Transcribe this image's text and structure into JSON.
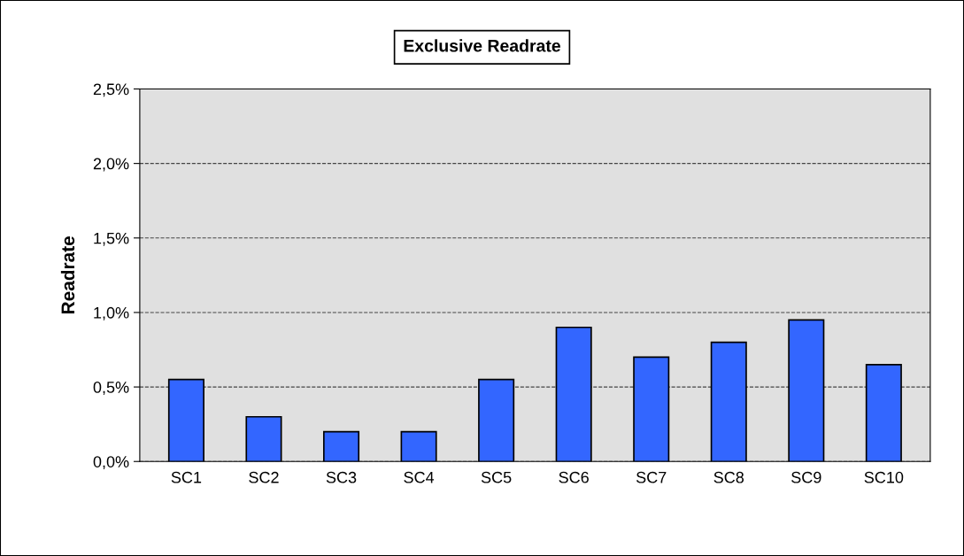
{
  "chart_data": {
    "type": "bar",
    "title": "Exclusive Readrate",
    "ylabel": "Readrate",
    "categories": [
      "SC1",
      "SC2",
      "SC3",
      "SC4",
      "SC5",
      "SC6",
      "SC7",
      "SC8",
      "SC9",
      "SC10"
    ],
    "values": [
      0.55,
      0.3,
      0.2,
      0.2,
      0.55,
      0.9,
      0.7,
      0.8,
      0.95,
      0.65
    ],
    "color": "#3366ff",
    "ylim": [
      0,
      2.5
    ],
    "yticks": [
      {
        "value": 0,
        "label": "0,0%"
      },
      {
        "value": 0.5,
        "label": "0,5%"
      },
      {
        "value": 1.0,
        "label": "1,0%"
      },
      {
        "value": 1.5,
        "label": "1,5%"
      },
      {
        "value": 2.0,
        "label": "2,0%"
      },
      {
        "value": 2.5,
        "label": "2,5%"
      }
    ],
    "grid": "y"
  }
}
